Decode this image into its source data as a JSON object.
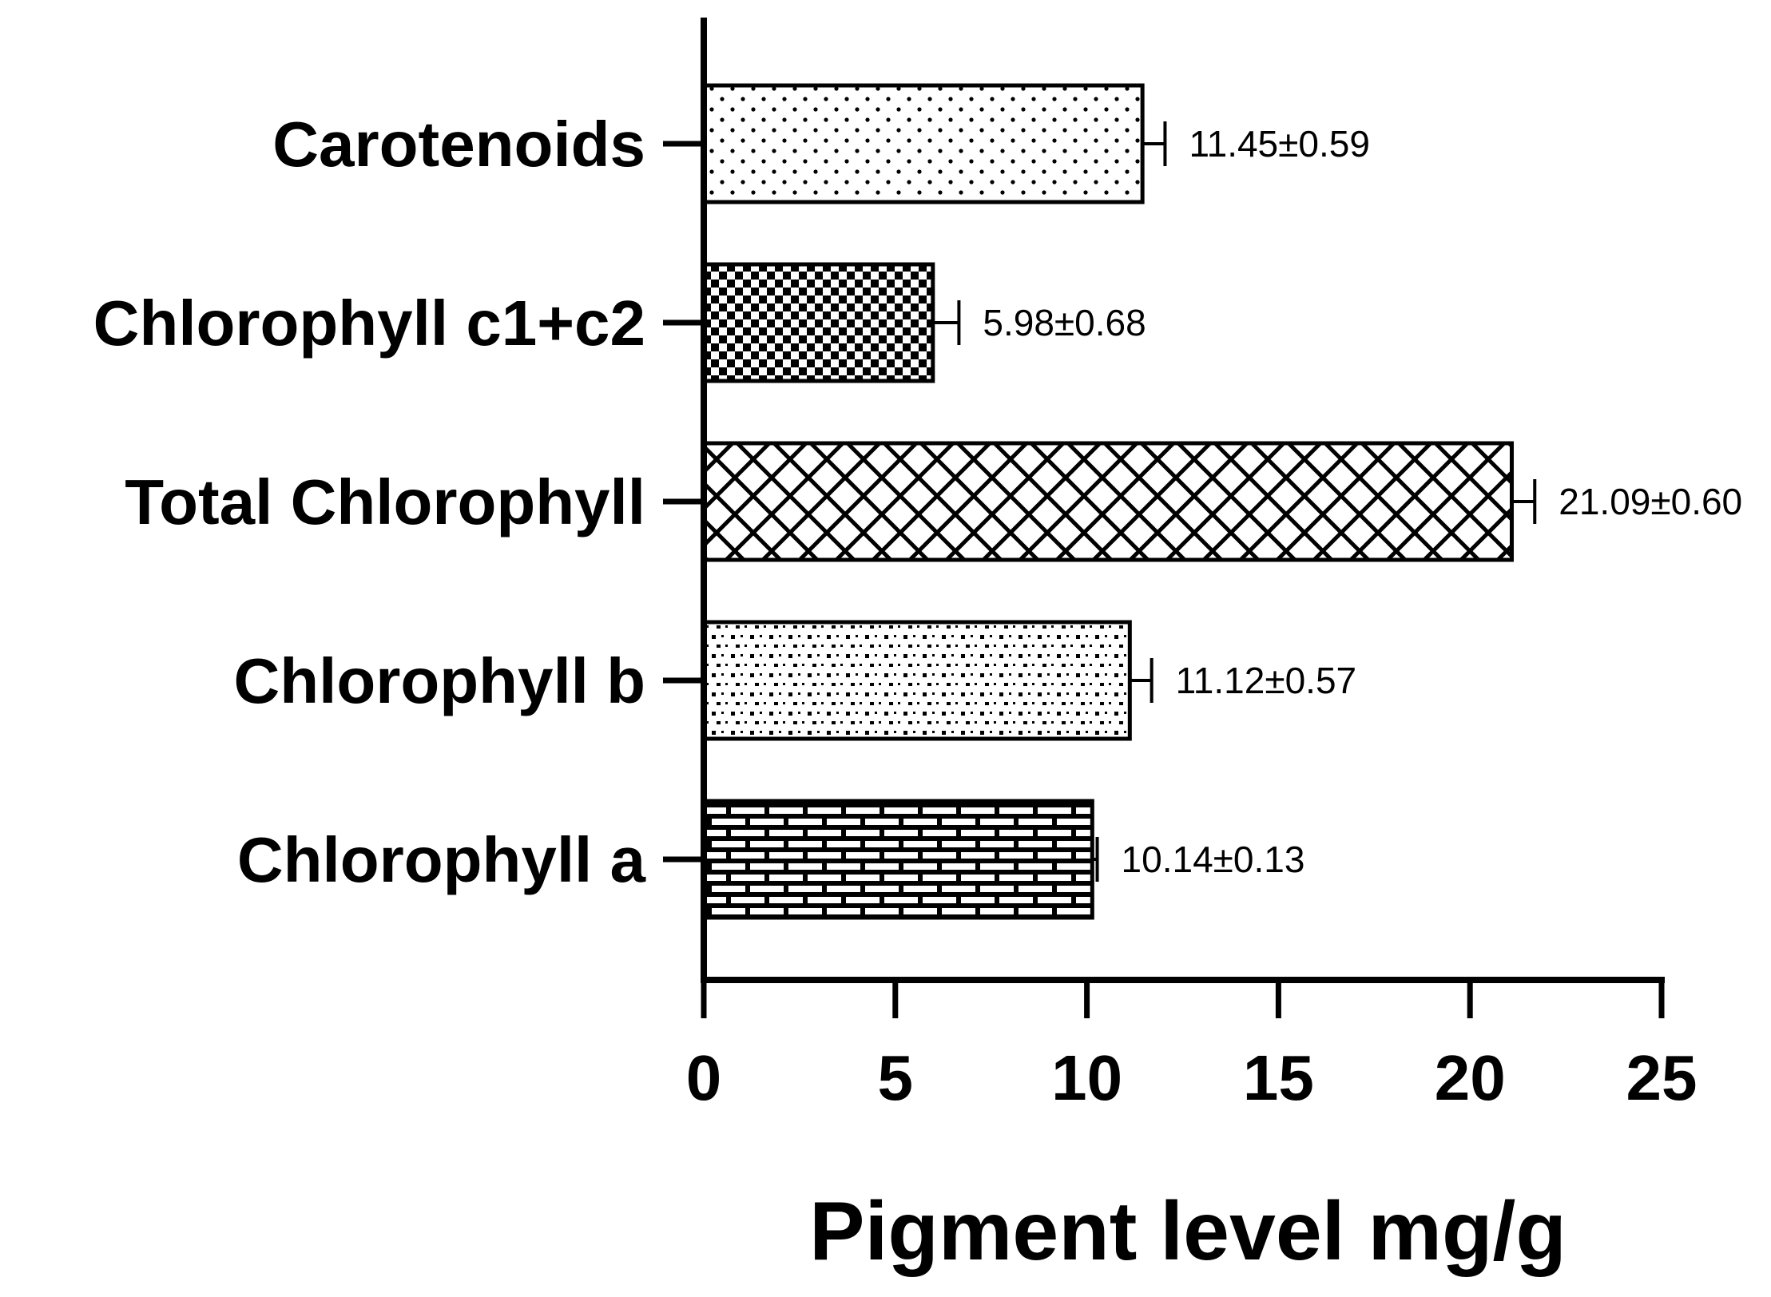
{
  "chart_data": {
    "type": "bar",
    "orientation": "horizontal",
    "categories": [
      "Carotenoids",
      "Chlorophyll c1+c2",
      "Total Chlorophyll",
      "Chlorophyll b",
      "Chlorophyll a"
    ],
    "values": [
      11.45,
      5.98,
      21.09,
      11.12,
      10.14
    ],
    "errors": [
      0.59,
      0.68,
      0.6,
      0.57,
      0.13
    ],
    "data_labels": [
      "11.45±0.59",
      "5.98±0.68",
      "21.09±0.60",
      "11.12±0.57",
      "10.14±0.13"
    ],
    "patterns": [
      "dots",
      "checker",
      "diagonal-crosshatch",
      "dotted-grid",
      "brick"
    ],
    "title": "",
    "xlabel": "Pigment level mg/g",
    "ylabel": "",
    "xlim": [
      0,
      25
    ],
    "xticks": [
      0,
      5,
      10,
      15,
      20,
      25
    ],
    "xtick_labels": [
      "0",
      "5",
      "10",
      "15",
      "20",
      "25"
    ],
    "grid": false,
    "legend": "none",
    "bar_fill": "#ffffff",
    "bar_stroke": "#000000",
    "axis_color": "#000000"
  }
}
